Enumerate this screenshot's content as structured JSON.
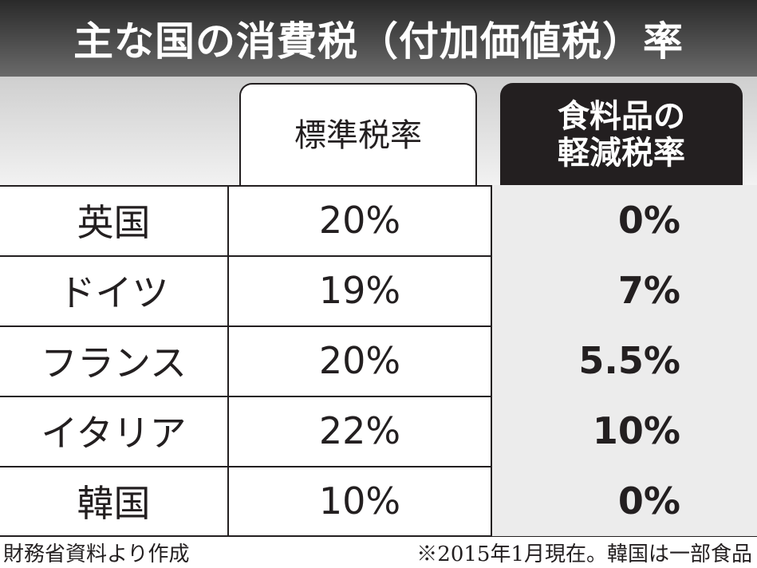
{
  "title": "主な国の消費税（付加価値税）率",
  "table": {
    "columns": [
      {
        "lines": [
          "標準税率"
        ]
      },
      {
        "lines": [
          "食料品の",
          "軽減税率"
        ]
      }
    ],
    "rows": [
      [
        "英国",
        "20%",
        "0%"
      ],
      [
        "ドイツ",
        "19%",
        "7%"
      ],
      [
        "フランス",
        "20%",
        "5.5%"
      ],
      [
        "イタリア",
        "22%",
        "10%"
      ],
      [
        "韓国",
        "10%",
        "0%"
      ]
    ]
  },
  "footer": {
    "source": "財務省資料より作成",
    "note": "※2015年1月現在。韓国は一部食品"
  }
}
